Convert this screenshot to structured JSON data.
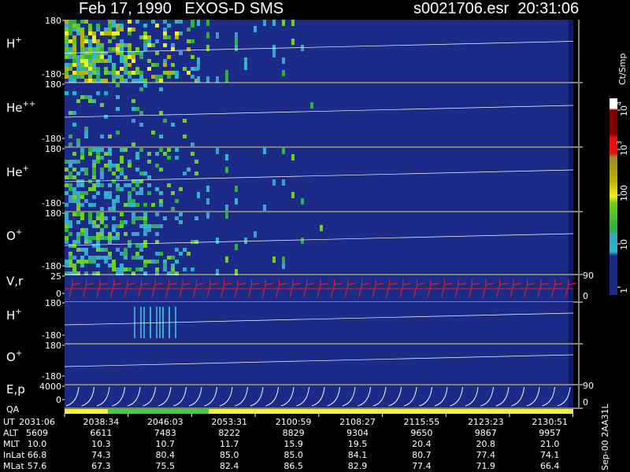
{
  "header": {
    "title": "Feb 17, 1990   EXOS-D SMS",
    "file": "s0021706.esr  20:31:06"
  },
  "panels": [
    {
      "label": {
        "base": "H",
        "sup": "+"
      },
      "ticks": [
        "180",
        "-180"
      ]
    },
    {
      "label": {
        "base": "He",
        "sup": "++"
      },
      "ticks": [
        "180",
        "-180"
      ]
    },
    {
      "label": {
        "base": "He",
        "sup": "+"
      },
      "ticks": [
        "180",
        "-180"
      ]
    },
    {
      "label": {
        "base": "O",
        "sup": "+"
      },
      "ticks": [
        "180",
        "-180"
      ]
    },
    {
      "label": {
        "base": "V,r"
      },
      "ticks": [
        "25",
        "0"
      ],
      "right_ticks": [
        "90",
        "0"
      ]
    },
    {
      "label": {
        "base": "H",
        "sup": "+"
      },
      "ticks": [
        "180",
        "-180"
      ]
    },
    {
      "label": {
        "base": "O",
        "sup": "+"
      },
      "ticks": [
        "180",
        "-180"
      ]
    },
    {
      "label": {
        "base": "E,p"
      },
      "ticks": [
        "4000",
        "0"
      ],
      "right_ticks": [
        "90",
        "0"
      ]
    }
  ],
  "qa_label": "QA",
  "colorbar": {
    "unit": "Ct/Smp",
    "ticks": [
      {
        "base": "10",
        "sup": "4"
      },
      {
        "base": "10",
        "sup": "3"
      },
      {
        "base": "100"
      },
      {
        "base": "10"
      },
      {
        "base": "1"
      }
    ]
  },
  "table": {
    "rows": [
      {
        "label": "UT",
        "cells": [
          "2031:06",
          "2038:34",
          "2046:03",
          "2053:31",
          "2100:59",
          "2108:27",
          "2115:55",
          "2123:23",
          "2130:51"
        ]
      },
      {
        "label": "ALT",
        "cells": [
          "5609",
          "6611",
          "7483",
          "8222",
          "8829",
          "9304",
          "9650",
          "9867",
          "9957"
        ]
      },
      {
        "label": "MLT",
        "cells": [
          "10.0",
          "10.3",
          "10.7",
          "11.7",
          "15.9",
          "19.5",
          "20.4",
          "20.8",
          "21.0"
        ]
      },
      {
        "label": "InLat",
        "cells": [
          "66.8",
          "74.3",
          "80.4",
          "85.0",
          "85.0",
          "84.1",
          "80.7",
          "77.4",
          "74.1"
        ]
      },
      {
        "label": "MLat",
        "cells": [
          "57.6",
          "67.3",
          "75.5",
          "82.4",
          "86.5",
          "82.9",
          "77.4",
          "71.9",
          "66.4"
        ]
      }
    ]
  },
  "footer": "Sep-00 2AA31L"
}
